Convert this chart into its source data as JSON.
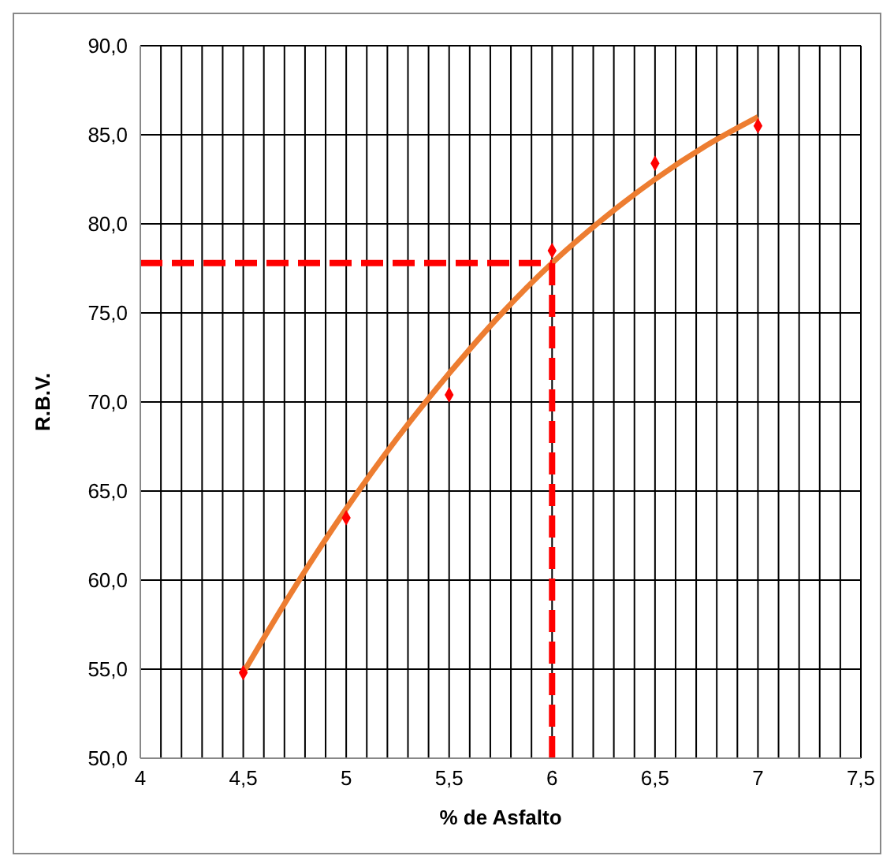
{
  "chart_data": {
    "type": "scatter",
    "xlabel": "% de Asfalto",
    "ylabel": "R.B.V.",
    "xlim": [
      4,
      7.5
    ],
    "xticks": [
      4,
      {
        "value": 4.1,
        "label": null
      },
      {
        "value": 4.2,
        "label": null
      },
      {
        "value": 4.3,
        "label": null
      },
      {
        "value": 4.4,
        "label": null
      },
      {
        "value": 4.5,
        "label": "4,5"
      },
      {
        "value": 4.6,
        "label": null
      },
      {
        "value": 4.7,
        "label": null
      },
      {
        "value": 4.8,
        "label": null
      },
      {
        "value": 4.9,
        "label": null
      },
      5,
      {
        "value": 5.1,
        "label": null
      },
      {
        "value": 5.2,
        "label": null
      },
      {
        "value": 5.3,
        "label": null
      },
      {
        "value": 5.4,
        "label": null
      },
      {
        "value": 5.5,
        "label": "5,5"
      },
      {
        "value": 5.6,
        "label": null
      },
      {
        "value": 5.7,
        "label": null
      },
      {
        "value": 5.8,
        "label": null
      },
      {
        "value": 5.9,
        "label": null
      },
      6,
      {
        "value": 6.1,
        "label": null
      },
      {
        "value": 6.2,
        "label": null
      },
      {
        "value": 6.3,
        "label": null
      },
      {
        "value": 6.4,
        "label": null
      },
      {
        "value": 6.5,
        "label": "6,5"
      },
      {
        "value": 6.6,
        "label": null
      },
      {
        "value": 6.7,
        "label": null
      },
      {
        "value": 6.8,
        "label": null
      },
      {
        "value": 6.9,
        "label": null
      },
      7,
      {
        "value": 7.1,
        "label": null
      },
      {
        "value": 7.2,
        "label": null
      },
      {
        "value": 7.3,
        "label": null
      },
      {
        "value": 7.4,
        "label": null
      },
      {
        "value": 7.5,
        "label": "7,5"
      }
    ],
    "ylim": [
      50,
      90
    ],
    "yticks": [
      {
        "value": 50,
        "label": "50,0"
      },
      {
        "value": 55,
        "label": "55,0"
      },
      {
        "value": 60,
        "label": "60,0"
      },
      {
        "value": 65,
        "label": "65,0"
      },
      {
        "value": 70,
        "label": "70,0"
      },
      {
        "value": 75,
        "label": "75,0"
      },
      {
        "value": 80,
        "label": "80,0"
      },
      {
        "value": 85,
        "label": "85,0"
      },
      {
        "value": 90,
        "label": "90,0"
      }
    ],
    "grid": true,
    "series": [
      {
        "type": "line",
        "color": "#ed7d31",
        "marker": "none",
        "line_style": "solid",
        "x": [
          4.5,
          4.75,
          5,
          5.25,
          5.5,
          5.75,
          6,
          6.25,
          6.5,
          6.75,
          7
        ],
        "values": [
          54.8,
          59.6,
          64,
          68,
          71.6,
          74.9,
          77.8,
          80.3,
          82.5,
          84.4,
          86
        ]
      },
      {
        "type": "line",
        "color": "#ff0000",
        "marker": "none",
        "line_style": "dashed",
        "x": [
          4,
          6
        ],
        "values": [
          77.8,
          77.8
        ]
      },
      {
        "type": "line",
        "color": "#ff0000",
        "marker": "none",
        "line_style": "dashed",
        "x": [
          6,
          6
        ],
        "values": [
          50,
          77.8
        ]
      },
      {
        "color": "#ff0000",
        "marker": "diamond",
        "x": [
          4.5,
          5,
          5.5,
          6,
          6.5,
          7
        ],
        "values": [
          54.8,
          63.5,
          70.4,
          78.5,
          83.4,
          85.5
        ]
      }
    ]
  }
}
